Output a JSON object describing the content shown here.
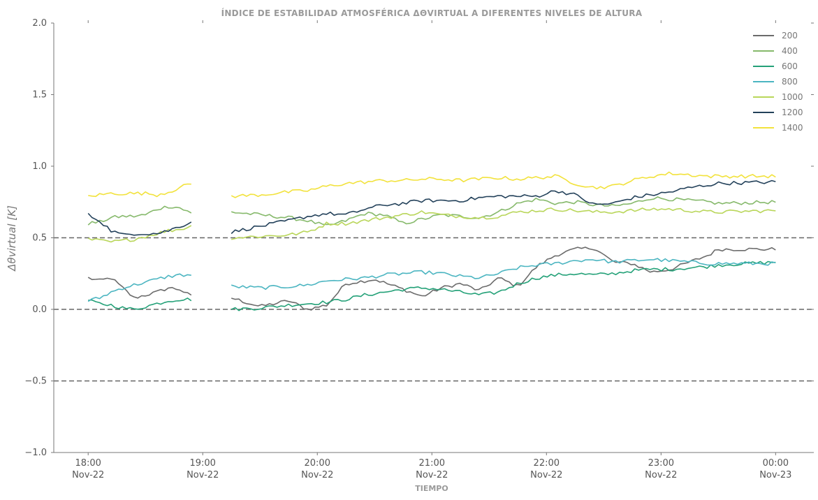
{
  "chart_data": {
    "type": "line",
    "title": "ÍNDICE DE ESTABILIDAD ATMOSFÉRICA ΔΘVIRTUAL A DIFERENTES NIVELES DE ALTURA",
    "xlabel": "TIEMPO",
    "ylabel": "Δθvirtual [K]",
    "ylim": [
      -1.0,
      2.0
    ],
    "xlim": [
      "2022-11-22 17:42",
      "2022-11-23 00:20"
    ],
    "yticks": [
      "−1.0",
      "−0.5",
      "0.0",
      "0.5",
      "1.0",
      "1.5",
      "2.0"
    ],
    "xticks": [
      {
        "time": "2022-11-22 18:00",
        "line1": "18:00",
        "line2": "Nov-22"
      },
      {
        "time": "2022-11-22 19:00",
        "line1": "19:00",
        "line2": "Nov-22"
      },
      {
        "time": "2022-11-22 20:00",
        "line1": "20:00",
        "line2": "Nov-22"
      },
      {
        "time": "2022-11-22 21:00",
        "line1": "21:00",
        "line2": "Nov-22"
      },
      {
        "time": "2022-11-22 22:00",
        "line1": "22:00",
        "line2": "Nov-22"
      },
      {
        "time": "2022-11-22 23:00",
        "line1": "23:00",
        "line2": "Nov-22"
      },
      {
        "time": "2022-11-23 00:00",
        "line1": "00:00",
        "line2": "Nov-23"
      }
    ],
    "reference_lines": [
      0.5,
      0.0,
      -0.5
    ],
    "grid": false,
    "legend_position": "top-right",
    "segments": [
      {
        "start": "2022-11-22 18:00",
        "end": "2022-11-22 18:54",
        "count": 28
      },
      {
        "start": "2022-11-22 19:15",
        "end": "2022-11-23 00:00",
        "count": 144
      }
    ],
    "series": [
      {
        "name": "200",
        "color": "#6b6b6b",
        "segments": [
          [
            [
              0,
              0.22
            ],
            [
              6,
              0.2
            ],
            [
              12,
              0.22
            ],
            [
              18,
              0.15
            ],
            [
              24,
              0.08
            ],
            [
              30,
              0.1
            ],
            [
              36,
              0.12
            ],
            [
              42,
              0.15
            ],
            [
              48,
              0.14
            ],
            [
              54,
              0.09
            ]
          ],
          [
            [
              0,
              0.08
            ],
            [
              15,
              0.02
            ],
            [
              30,
              0.06
            ],
            [
              40,
              0.0
            ],
            [
              50,
              0.03
            ],
            [
              60,
              0.18
            ],
            [
              75,
              0.21
            ],
            [
              90,
              0.14
            ],
            [
              100,
              0.09
            ],
            [
              110,
              0.15
            ],
            [
              120,
              0.18
            ],
            [
              130,
              0.13
            ],
            [
              140,
              0.22
            ],
            [
              150,
              0.16
            ],
            [
              160,
              0.3
            ],
            [
              170,
              0.38
            ],
            [
              180,
              0.42
            ],
            [
              190,
              0.43
            ],
            [
              200,
              0.33
            ],
            [
              210,
              0.32
            ],
            [
              220,
              0.26
            ],
            [
              230,
              0.28
            ],
            [
              240,
              0.33
            ],
            [
              250,
              0.38
            ],
            [
              255,
              0.42
            ],
            [
              285,
              0.42
            ]
          ]
        ]
      },
      {
        "name": "400",
        "color": "#86b96b",
        "segments": [
          [
            [
              0,
              0.6
            ],
            [
              6,
              0.61
            ],
            [
              12,
              0.64
            ],
            [
              18,
              0.65
            ],
            [
              24,
              0.65
            ],
            [
              30,
              0.66
            ],
            [
              36,
              0.7
            ],
            [
              42,
              0.72
            ],
            [
              48,
              0.71
            ],
            [
              54,
              0.67
            ]
          ],
          [
            [
              0,
              0.68
            ],
            [
              15,
              0.66
            ],
            [
              30,
              0.64
            ],
            [
              40,
              0.62
            ],
            [
              50,
              0.58
            ],
            [
              60,
              0.62
            ],
            [
              70,
              0.67
            ],
            [
              80,
              0.66
            ],
            [
              90,
              0.6
            ],
            [
              100,
              0.63
            ],
            [
              110,
              0.66
            ],
            [
              120,
              0.65
            ],
            [
              130,
              0.64
            ],
            [
              140,
              0.68
            ],
            [
              150,
              0.74
            ],
            [
              160,
              0.77
            ],
            [
              170,
              0.74
            ],
            [
              180,
              0.75
            ],
            [
              190,
              0.73
            ],
            [
              200,
              0.72
            ],
            [
              210,
              0.74
            ],
            [
              220,
              0.78
            ],
            [
              230,
              0.77
            ],
            [
              240,
              0.76
            ],
            [
              250,
              0.75
            ],
            [
              255,
              0.74
            ],
            [
              285,
              0.75
            ]
          ]
        ]
      },
      {
        "name": "600",
        "color": "#24a178",
        "segments": [
          [
            [
              0,
              0.06
            ],
            [
              6,
              0.04
            ],
            [
              12,
              0.03
            ],
            [
              18,
              0.01
            ],
            [
              24,
              0.0
            ],
            [
              30,
              0.02
            ],
            [
              36,
              0.04
            ],
            [
              42,
              0.06
            ],
            [
              48,
              0.07
            ],
            [
              54,
              0.07
            ]
          ],
          [
            [
              0,
              0.0
            ],
            [
              15,
              0.01
            ],
            [
              30,
              0.03
            ],
            [
              40,
              0.04
            ],
            [
              50,
              0.05
            ],
            [
              60,
              0.07
            ],
            [
              70,
              0.1
            ],
            [
              80,
              0.12
            ],
            [
              90,
              0.14
            ],
            [
              100,
              0.15
            ],
            [
              110,
              0.14
            ],
            [
              120,
              0.12
            ],
            [
              130,
              0.1
            ],
            [
              140,
              0.12
            ],
            [
              150,
              0.18
            ],
            [
              160,
              0.22
            ],
            [
              170,
              0.24
            ],
            [
              180,
              0.25
            ],
            [
              190,
              0.24
            ],
            [
              200,
              0.25
            ],
            [
              210,
              0.27
            ],
            [
              220,
              0.28
            ],
            [
              230,
              0.28
            ],
            [
              240,
              0.29
            ],
            [
              250,
              0.3
            ],
            [
              255,
              0.31
            ],
            [
              285,
              0.33
            ]
          ]
        ]
      },
      {
        "name": "800",
        "color": "#4bb5c1",
        "segments": [
          [
            [
              0,
              0.06
            ],
            [
              6,
              0.08
            ],
            [
              12,
              0.12
            ],
            [
              18,
              0.15
            ],
            [
              24,
              0.17
            ],
            [
              30,
              0.19
            ],
            [
              36,
              0.21
            ],
            [
              42,
              0.23
            ],
            [
              48,
              0.24
            ],
            [
              54,
              0.24
            ]
          ],
          [
            [
              0,
              0.16
            ],
            [
              15,
              0.15
            ],
            [
              30,
              0.16
            ],
            [
              40,
              0.17
            ],
            [
              50,
              0.2
            ],
            [
              60,
              0.21
            ],
            [
              70,
              0.22
            ],
            [
              80,
              0.24
            ],
            [
              90,
              0.25
            ],
            [
              100,
              0.26
            ],
            [
              110,
              0.25
            ],
            [
              120,
              0.23
            ],
            [
              130,
              0.22
            ],
            [
              140,
              0.25
            ],
            [
              150,
              0.29
            ],
            [
              160,
              0.31
            ],
            [
              170,
              0.32
            ],
            [
              180,
              0.34
            ],
            [
              190,
              0.35
            ],
            [
              200,
              0.33
            ],
            [
              210,
              0.34
            ],
            [
              220,
              0.35
            ],
            [
              230,
              0.34
            ],
            [
              240,
              0.33
            ],
            [
              250,
              0.32
            ],
            [
              255,
              0.32
            ],
            [
              285,
              0.32
            ]
          ]
        ]
      },
      {
        "name": "1000",
        "color": "#b9d65a",
        "segments": [
          [
            [
              0,
              0.49
            ],
            [
              6,
              0.48
            ],
            [
              12,
              0.47
            ],
            [
              18,
              0.48
            ],
            [
              24,
              0.49
            ],
            [
              30,
              0.51
            ],
            [
              36,
              0.53
            ],
            [
              42,
              0.55
            ],
            [
              48,
              0.56
            ],
            [
              54,
              0.58
            ]
          ],
          [
            [
              0,
              0.5
            ],
            [
              15,
              0.51
            ],
            [
              30,
              0.52
            ],
            [
              40,
              0.54
            ],
            [
              50,
              0.6
            ],
            [
              60,
              0.6
            ],
            [
              70,
              0.62
            ],
            [
              80,
              0.64
            ],
            [
              90,
              0.66
            ],
            [
              100,
              0.68
            ],
            [
              110,
              0.66
            ],
            [
              120,
              0.65
            ],
            [
              130,
              0.64
            ],
            [
              140,
              0.65
            ],
            [
              150,
              0.68
            ],
            [
              160,
              0.69
            ],
            [
              170,
              0.7
            ],
            [
              180,
              0.69
            ],
            [
              190,
              0.68
            ],
            [
              200,
              0.68
            ],
            [
              210,
              0.69
            ],
            [
              220,
              0.7
            ],
            [
              230,
              0.7
            ],
            [
              240,
              0.69
            ],
            [
              250,
              0.68
            ],
            [
              255,
              0.68
            ],
            [
              285,
              0.69
            ]
          ]
        ]
      },
      {
        "name": "1200",
        "color": "#23415a",
        "segments": [
          [
            [
              0,
              0.66
            ],
            [
              6,
              0.62
            ],
            [
              12,
              0.55
            ],
            [
              18,
              0.52
            ],
            [
              24,
              0.53
            ],
            [
              30,
              0.53
            ],
            [
              36,
              0.53
            ],
            [
              42,
              0.55
            ],
            [
              48,
              0.58
            ],
            [
              54,
              0.61
            ]
          ],
          [
            [
              0,
              0.54
            ],
            [
              15,
              0.58
            ],
            [
              30,
              0.62
            ],
            [
              40,
              0.65
            ],
            [
              50,
              0.67
            ],
            [
              60,
              0.66
            ],
            [
              70,
              0.7
            ],
            [
              80,
              0.73
            ],
            [
              90,
              0.74
            ],
            [
              100,
              0.76
            ],
            [
              110,
              0.76
            ],
            [
              120,
              0.76
            ],
            [
              130,
              0.78
            ],
            [
              140,
              0.79
            ],
            [
              150,
              0.79
            ],
            [
              160,
              0.79
            ],
            [
              170,
              0.83
            ],
            [
              180,
              0.8
            ],
            [
              190,
              0.73
            ],
            [
              200,
              0.74
            ],
            [
              210,
              0.78
            ],
            [
              220,
              0.8
            ],
            [
              230,
              0.82
            ],
            [
              240,
              0.85
            ],
            [
              250,
              0.87
            ],
            [
              255,
              0.88
            ],
            [
              285,
              0.89
            ]
          ]
        ]
      },
      {
        "name": "1400",
        "color": "#f2e23c",
        "segments": [
          [
            [
              0,
              0.79
            ],
            [
              6,
              0.8
            ],
            [
              12,
              0.81
            ],
            [
              18,
              0.81
            ],
            [
              24,
              0.81
            ],
            [
              30,
              0.81
            ],
            [
              36,
              0.8
            ],
            [
              42,
              0.82
            ],
            [
              48,
              0.85
            ],
            [
              54,
              0.88
            ]
          ],
          [
            [
              0,
              0.79
            ],
            [
              15,
              0.8
            ],
            [
              30,
              0.82
            ],
            [
              40,
              0.83
            ],
            [
              50,
              0.86
            ],
            [
              60,
              0.88
            ],
            [
              70,
              0.89
            ],
            [
              80,
              0.9
            ],
            [
              90,
              0.9
            ],
            [
              100,
              0.91
            ],
            [
              110,
              0.91
            ],
            [
              120,
              0.9
            ],
            [
              130,
              0.91
            ],
            [
              140,
              0.92
            ],
            [
              150,
              0.91
            ],
            [
              160,
              0.92
            ],
            [
              170,
              0.93
            ],
            [
              180,
              0.88
            ],
            [
              190,
              0.85
            ],
            [
              200,
              0.86
            ],
            [
              210,
              0.9
            ],
            [
              220,
              0.93
            ],
            [
              230,
              0.95
            ],
            [
              240,
              0.94
            ],
            [
              250,
              0.93
            ],
            [
              255,
              0.93
            ],
            [
              285,
              0.93
            ]
          ]
        ]
      }
    ]
  }
}
